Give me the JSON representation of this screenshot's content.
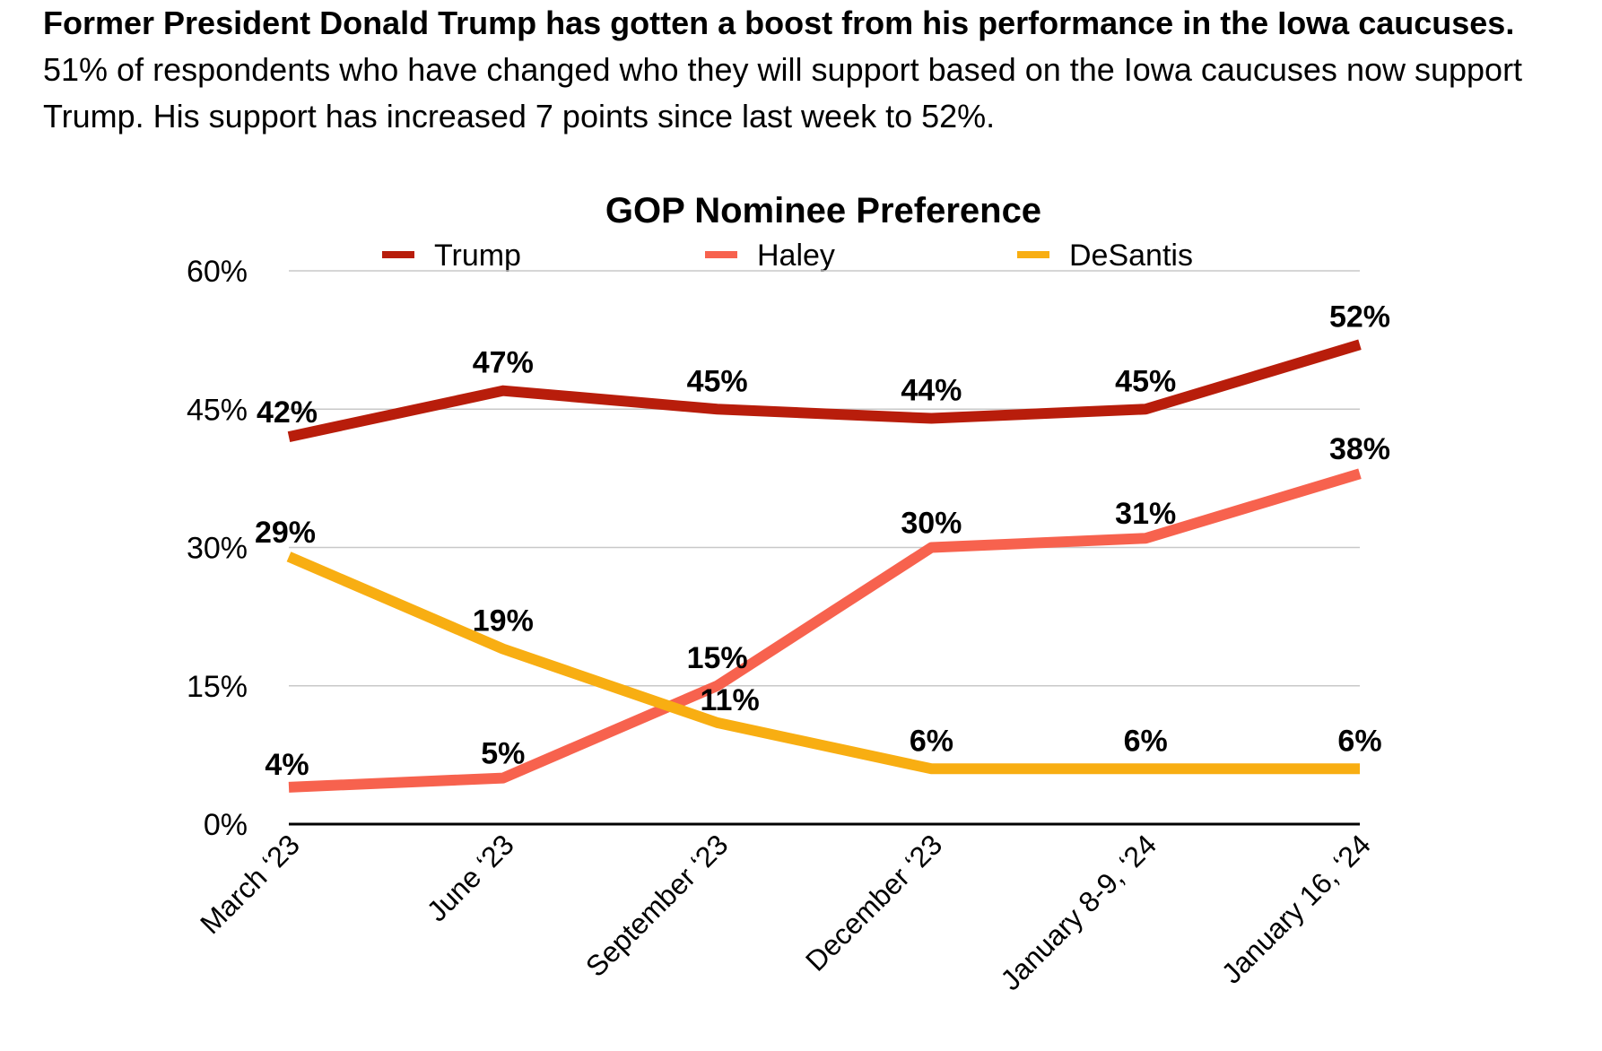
{
  "intro": {
    "bold": "Former President Donald Trump has gotten a boost from his performance in the Iowa caucuses.",
    "rest": "  51% of respondents who have changed who they will support based on the Iowa caucuses now support Trump.  His support has increased 7 points since last week to 52%."
  },
  "chart_data": {
    "type": "line",
    "title": "GOP Nominee Preference",
    "xlabel": "",
    "ylabel": "",
    "categories": [
      "March ‘23",
      "June ‘23",
      "September ‘23",
      "December ‘23",
      "January 8-9, ‘24",
      "January 16, ‘24"
    ],
    "ylim": [
      0,
      60
    ],
    "yticks": [
      0,
      15,
      30,
      45,
      60
    ],
    "ytick_labels": [
      "0%",
      "15%",
      "30%",
      "45%",
      "60%"
    ],
    "grid": true,
    "legend_position": "top",
    "series": [
      {
        "name": "Trump",
        "color": "#B81D0B",
        "values": [
          42,
          47,
          45,
          44,
          45,
          52
        ],
        "labels": [
          "42%",
          "47%",
          "45%",
          "44%",
          "45%",
          "52%"
        ]
      },
      {
        "name": "Haley",
        "color": "#F7624E",
        "values": [
          4,
          5,
          15,
          30,
          31,
          38
        ],
        "labels": [
          "4%",
          "5%",
          "15%",
          "30%",
          "31%",
          "38%"
        ]
      },
      {
        "name": "DeSantis",
        "color": "#F8AE12",
        "values": [
          29,
          19,
          11,
          6,
          6,
          6
        ],
        "labels": [
          "29%",
          "19%",
          "11%",
          "6%",
          "6%",
          "6%"
        ]
      }
    ]
  }
}
